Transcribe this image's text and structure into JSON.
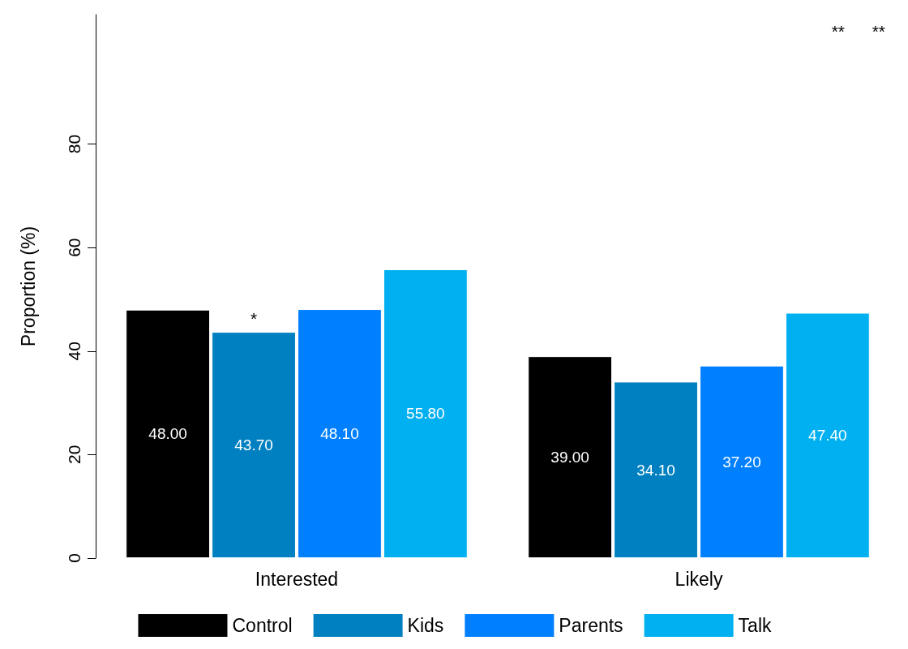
{
  "chart_data": {
    "type": "bar",
    "ylabel": "Proportion (%)",
    "categories": [
      "Interested",
      "Likely"
    ],
    "series": [
      {
        "name": "Control",
        "color": "#000000",
        "values": [
          48.0,
          39.0
        ],
        "value_labels": [
          "48.00",
          "39.00"
        ]
      },
      {
        "name": "Kids",
        "color": "#0080c0",
        "values": [
          43.7,
          34.1
        ],
        "value_labels": [
          "43.70",
          "34.10"
        ]
      },
      {
        "name": "Parents",
        "color": "#0080ff",
        "values": [
          48.1,
          37.2
        ],
        "value_labels": [
          "48.10",
          "37.20"
        ]
      },
      {
        "name": "Talk",
        "color": "#00b0f0",
        "values": [
          55.8,
          47.4
        ],
        "value_labels": [
          "55.80",
          "47.40"
        ]
      }
    ],
    "ylim": [
      0,
      105
    ],
    "yticks": [
      0,
      20,
      40,
      60,
      80
    ],
    "grid": false,
    "legend": "bottom",
    "annotations": [
      {
        "text": "*",
        "x": "Interested",
        "y": 43.7
      },
      "**",
      "**"
    ]
  }
}
